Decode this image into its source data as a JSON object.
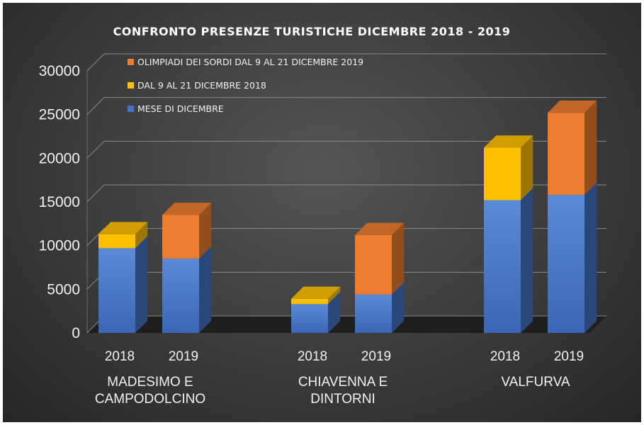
{
  "chart_data": {
    "type": "bar",
    "stacked": true,
    "style": "3d",
    "title": "CONFRONTO PRESENZE TURISTICHE DICEMBRE 2018 - 2019",
    "xlabel": "",
    "ylabel": "",
    "ylim": [
      0,
      30000
    ],
    "yticks": [
      "0",
      "5000",
      "10000",
      "15000",
      "20000",
      "25000",
      "30000"
    ],
    "grid": true,
    "legend_position": "top-left",
    "groups": [
      {
        "label_lines": [
          "MADESIMO E",
          "CAMPODOLCINO"
        ],
        "years": [
          "2018",
          "2019"
        ]
      },
      {
        "label_lines": [
          "CHIAVENNA E",
          "DINTORNI"
        ],
        "years": [
          "2018",
          "2019"
        ]
      },
      {
        "label_lines": [
          "VALFURVA"
        ],
        "years": [
          "2018",
          "2019"
        ]
      }
    ],
    "series": [
      {
        "name": "MESE DI DICEMBRE",
        "color": "#4472c4",
        "values": [
          9700,
          8500,
          3300,
          4400,
          15200,
          15800
        ]
      },
      {
        "name": "DAL 9 AL 21 DICEMBRE 2018",
        "color": "#ffc000",
        "values": [
          1600,
          0,
          600,
          0,
          6000,
          0
        ]
      },
      {
        "name": "OLIMPIADI DEI SORDI DAL 9 AL 21 DICEMBRE 2019",
        "color": "#ed7d31",
        "values": [
          0,
          5000,
          0,
          6800,
          0,
          9400
        ]
      }
    ],
    "legend_order": [
      "OLIMPIADI DEI SORDI DAL 9 AL 21 DICEMBRE 2019",
      "DAL 9 AL 21 DICEMBRE 2018",
      "MESE DI DICEMBRE"
    ]
  }
}
